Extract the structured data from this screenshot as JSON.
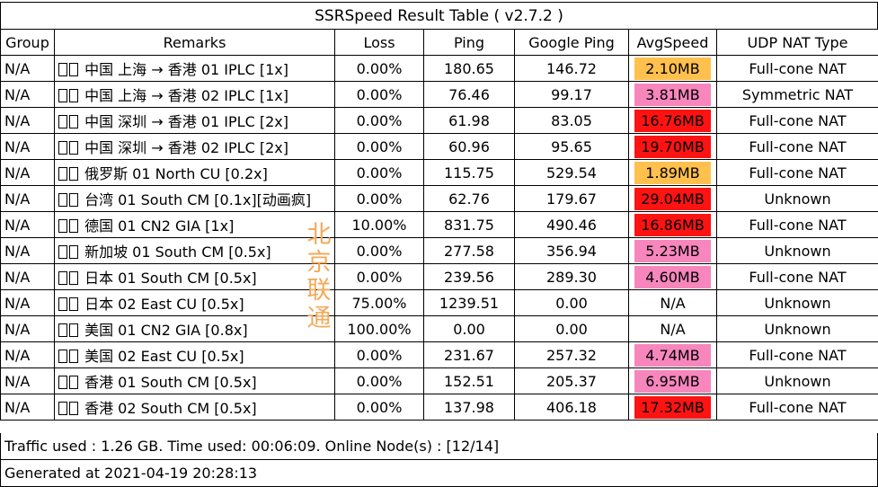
{
  "title": "SSRSpeed Result Table ( v2.7.2 )",
  "columns": [
    "Group",
    "Remarks",
    "Loss",
    "Ping",
    "Google Ping",
    "AvgSpeed",
    "UDP NAT Type"
  ],
  "colors": {
    "orange": "#ffc04d",
    "pink": "#f786bd",
    "red": "#fe1313",
    "none": "#ffffff",
    "watermark": "#f4a95a"
  },
  "rows": [
    {
      "group": "N/A",
      "remarks": "中国 上海 → 香港 01 IPLC [1x]",
      "loss": "0.00%",
      "ping": "180.65",
      "google_ping": "146.72",
      "speed": "2.10MB",
      "speed_color": "#ffc04d",
      "nat": "Full-cone NAT"
    },
    {
      "group": "N/A",
      "remarks": "中国 上海 → 香港 02 IPLC [1x]",
      "loss": "0.00%",
      "ping": "76.46",
      "google_ping": "99.17",
      "speed": "3.81MB",
      "speed_color": "#f786bd",
      "nat": "Symmetric NAT"
    },
    {
      "group": "N/A",
      "remarks": "中国 深圳 → 香港 01 IPLC [2x]",
      "loss": "0.00%",
      "ping": "61.98",
      "google_ping": "83.05",
      "speed": "16.76MB",
      "speed_color": "#fe1313",
      "nat": "Full-cone NAT"
    },
    {
      "group": "N/A",
      "remarks": "中国 深圳 → 香港 02 IPLC [2x]",
      "loss": "0.00%",
      "ping": "60.96",
      "google_ping": "95.65",
      "speed": "19.70MB",
      "speed_color": "#fe1313",
      "nat": "Full-cone NAT"
    },
    {
      "group": "N/A",
      "remarks": "俄罗斯 01 North CU [0.2x]",
      "loss": "0.00%",
      "ping": "115.75",
      "google_ping": "529.54",
      "speed": "1.89MB",
      "speed_color": "#ffc04d",
      "nat": "Full-cone NAT"
    },
    {
      "group": "N/A",
      "remarks": "台湾 01 South CM [0.1x][动画疯]",
      "loss": "0.00%",
      "ping": "62.76",
      "google_ping": "179.67",
      "speed": "29.04MB",
      "speed_color": "#fe1313",
      "nat": "Unknown"
    },
    {
      "group": "N/A",
      "remarks": "德国 01 CN2 GIA [1x]",
      "loss": "10.00%",
      "ping": "831.75",
      "google_ping": "490.46",
      "speed": "16.86MB",
      "speed_color": "#fe1313",
      "nat": "Full-cone NAT"
    },
    {
      "group": "N/A",
      "remarks": "新加坡 01 South CM [0.5x]",
      "loss": "0.00%",
      "ping": "277.58",
      "google_ping": "356.94",
      "speed": "5.23MB",
      "speed_color": "#f786bd",
      "nat": "Unknown"
    },
    {
      "group": "N/A",
      "remarks": "日本 01 South CM [0.5x]",
      "loss": "0.00%",
      "ping": "239.56",
      "google_ping": "289.30",
      "speed": "4.60MB",
      "speed_color": "#f786bd",
      "nat": "Full-cone NAT"
    },
    {
      "group": "N/A",
      "remarks": "日本 02 East CU [0.5x]",
      "loss": "75.00%",
      "ping": "1239.51",
      "google_ping": "0.00",
      "speed": "N/A",
      "speed_color": "#ffffff",
      "nat": "Unknown"
    },
    {
      "group": "N/A",
      "remarks": "美国 01 CN2 GIA [0.8x]",
      "loss": "100.00%",
      "ping": "0.00",
      "google_ping": "0.00",
      "speed": "N/A",
      "speed_color": "#ffffff",
      "nat": "Unknown"
    },
    {
      "group": "N/A",
      "remarks": "美国 02 East CU [0.5x]",
      "loss": "0.00%",
      "ping": "231.67",
      "google_ping": "257.32",
      "speed": "4.74MB",
      "speed_color": "#f786bd",
      "nat": "Full-cone NAT"
    },
    {
      "group": "N/A",
      "remarks": "香港 01 South CM [0.5x]",
      "loss": "0.00%",
      "ping": "152.51",
      "google_ping": "205.37",
      "speed": "6.95MB",
      "speed_color": "#f786bd",
      "nat": "Unknown"
    },
    {
      "group": "N/A",
      "remarks": "香港 02 South CM [0.5x]",
      "loss": "0.00%",
      "ping": "137.98",
      "google_ping": "406.18",
      "speed": "17.32MB",
      "speed_color": "#fe1313",
      "nat": "Full-cone NAT"
    }
  ],
  "footer": {
    "traffic": "Traffic used : 1.26 GB. Time used: 00:06:09. Online Node(s) : [12/14]",
    "generated": "Generated at 2021-04-19 20:28:13"
  },
  "watermark": "北京联通",
  "icons": {
    "flag": "flag-placeholder-icon"
  }
}
